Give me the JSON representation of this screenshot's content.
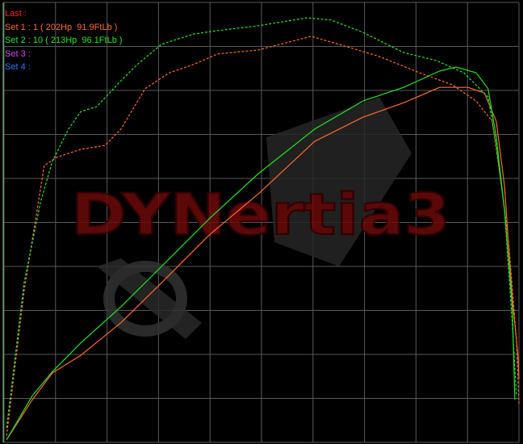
{
  "logo_text": "DYNertia3",
  "colors": {
    "background": "#000000",
    "grid": "#5a5a5a",
    "last": "#ff2020",
    "set1": "#ff6a2a",
    "set2": "#22e622",
    "set3": "#e040ff",
    "set4": "#2a7aff",
    "watermark": "#6a0a0a"
  },
  "legend": [
    {
      "label": "Last :",
      "color_key": "last"
    },
    {
      "label": "Set 1 : 1 ( 202Hp  91.9FtLb )",
      "color_key": "set1"
    },
    {
      "label": "Set 2 : 10 ( 213Hp  96.1FtLb )",
      "color_key": "set2"
    },
    {
      "label": "Set 3 :",
      "color_key": "set3"
    },
    {
      "label": "Set 4 :",
      "color_key": "set4"
    }
  ],
  "chart_data": {
    "type": "line",
    "title": "",
    "xlabel": "",
    "ylabel": "",
    "xlim": [
      0,
      100
    ],
    "ylim": [
      0,
      100
    ],
    "grid": true,
    "grid_divisions": {
      "x": 10,
      "y": 10
    },
    "legend_position": "top-left",
    "series": [
      {
        "set": "Set 1",
        "measure": "power",
        "style": "solid",
        "color_key": "set1",
        "points": [
          [
            0.5,
            0.6
          ],
          [
            5.5,
            9.7
          ],
          [
            9.4,
            15.8
          ],
          [
            14.9,
            19.8
          ],
          [
            22.7,
            27.2
          ],
          [
            30.6,
            36.3
          ],
          [
            40.0,
            47.3
          ],
          [
            49.4,
            56.5
          ],
          [
            60.3,
            68.4
          ],
          [
            69.7,
            73.9
          ],
          [
            77.6,
            77.2
          ],
          [
            84.6,
            80.7
          ],
          [
            90.1,
            80.7
          ],
          [
            93.3,
            79.4
          ],
          [
            95.6,
            73.0
          ],
          [
            97.2,
            58.3
          ],
          [
            98.7,
            32.7
          ],
          [
            99.8,
            19.8
          ],
          [
            100,
            14.5
          ]
        ]
      },
      {
        "set": "Set 1",
        "measure": "torque",
        "style": "dashed",
        "color_key": "set1",
        "points": [
          [
            0.5,
            1.5
          ],
          [
            3.9,
            34.5
          ],
          [
            7.8,
            62.9
          ],
          [
            10.2,
            64.8
          ],
          [
            14.9,
            66.6
          ],
          [
            19.6,
            67.5
          ],
          [
            22.7,
            71.2
          ],
          [
            27.4,
            80.4
          ],
          [
            32.1,
            84.0
          ],
          [
            36.8,
            85.9
          ],
          [
            41.5,
            88.3
          ],
          [
            49.4,
            89.2
          ],
          [
            59.6,
            92.3
          ],
          [
            65.0,
            90.5
          ],
          [
            72.9,
            87.7
          ],
          [
            80.7,
            84.0
          ],
          [
            87.0,
            81.3
          ],
          [
            91.7,
            77.6
          ],
          [
            94.8,
            73.0
          ],
          [
            96.4,
            60.2
          ],
          [
            98.0,
            45.5
          ],
          [
            99.5,
            23.5
          ],
          [
            100,
            8.8
          ]
        ]
      },
      {
        "set": "Set 2",
        "measure": "power",
        "style": "solid",
        "color_key": "set2",
        "points": [
          [
            0.5,
            0.6
          ],
          [
            5.5,
            10.6
          ],
          [
            9.4,
            16.1
          ],
          [
            14.9,
            22.6
          ],
          [
            22.7,
            30.8
          ],
          [
            30.6,
            40.0
          ],
          [
            40.0,
            51.0
          ],
          [
            49.4,
            61.1
          ],
          [
            60.3,
            71.2
          ],
          [
            69.7,
            77.6
          ],
          [
            77.6,
            80.7
          ],
          [
            84.6,
            84.4
          ],
          [
            87.8,
            85.3
          ],
          [
            91.7,
            84.0
          ],
          [
            94.0,
            80.4
          ],
          [
            95.6,
            69.4
          ],
          [
            97.2,
            52.8
          ],
          [
            98.7,
            30.8
          ],
          [
            99.2,
            9.7
          ]
        ]
      },
      {
        "set": "Set 2",
        "measure": "torque",
        "style": "dashed",
        "color_key": "set2",
        "points": [
          [
            0.5,
            3.3
          ],
          [
            3.9,
            36.3
          ],
          [
            7.1,
            54.7
          ],
          [
            9.4,
            63.9
          ],
          [
            12.5,
            71.2
          ],
          [
            14.9,
            75.2
          ],
          [
            18.0,
            76.3
          ],
          [
            22.7,
            82.2
          ],
          [
            25.9,
            85.9
          ],
          [
            30.6,
            90.5
          ],
          [
            36.8,
            92.8
          ],
          [
            41.5,
            93.6
          ],
          [
            49.4,
            94.7
          ],
          [
            58.8,
            96.5
          ],
          [
            63.5,
            96.0
          ],
          [
            69.7,
            93.2
          ],
          [
            77.6,
            88.6
          ],
          [
            83.9,
            86.8
          ],
          [
            89.3,
            84.0
          ],
          [
            94.0,
            78.5
          ],
          [
            95.6,
            67.5
          ],
          [
            97.2,
            52.8
          ],
          [
            98.7,
            27.2
          ],
          [
            99.5,
            10.8
          ]
        ]
      }
    ]
  }
}
